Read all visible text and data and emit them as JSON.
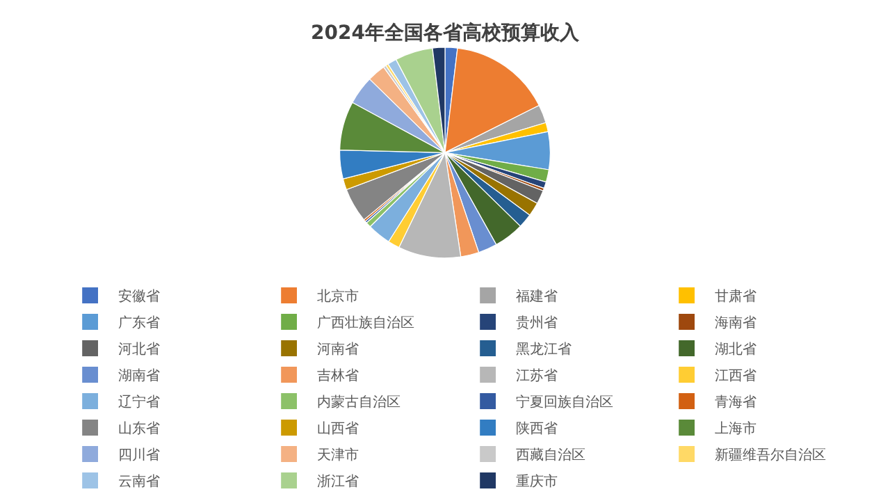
{
  "chart_data": {
    "type": "pie",
    "title": "2024年全国各省高校预算收入",
    "legend": "bottom",
    "categories": [
      "安徽省",
      "北京市",
      "福建省",
      "甘肃省",
      "广东省",
      "广西壮族自治区",
      "贵州省",
      "海南省",
      "河北省",
      "河南省",
      "黑龙江省",
      "湖北省",
      "湖南省",
      "吉林省",
      "江苏省",
      "江西省",
      "辽宁省",
      "内蒙古自治区",
      "宁夏回族自治区",
      "青海省",
      "山东省",
      "山西省",
      "陕西省",
      "上海市",
      "四川省",
      "天津市",
      "西藏自治区",
      "新疆维吾尔自治区",
      "云南省",
      "浙江省",
      "重庆市"
    ],
    "values": [
      1.9,
      15.7,
      2.8,
      1.4,
      5.8,
      1.9,
      1.0,
      0.4,
      2.1,
      2.1,
      2.2,
      4.6,
      2.9,
      2.8,
      9.6,
      1.8,
      3.6,
      0.8,
      0.3,
      0.3,
      5.3,
      1.7,
      4.4,
      7.5,
      4.4,
      2.8,
      0.4,
      0.4,
      1.4,
      5.8,
      1.9
    ],
    "colors": [
      "#4472c4",
      "#ed7d31",
      "#a5a5a5",
      "#ffc000",
      "#5b9bd5",
      "#70ad47",
      "#264478",
      "#9e480e",
      "#636363",
      "#997300",
      "#255e91",
      "#43682b",
      "#698ed0",
      "#f1975a",
      "#b7b7b7",
      "#ffcd33",
      "#7cafdd",
      "#8cc168",
      "#335aa1",
      "#d26012",
      "#848484",
      "#cc9a00",
      "#327dc2",
      "#5a8a39",
      "#8faadc",
      "#f4b183",
      "#c9c9c9",
      "#ffd966",
      "#9dc3e6",
      "#a9d18e",
      "#203864"
    ]
  }
}
